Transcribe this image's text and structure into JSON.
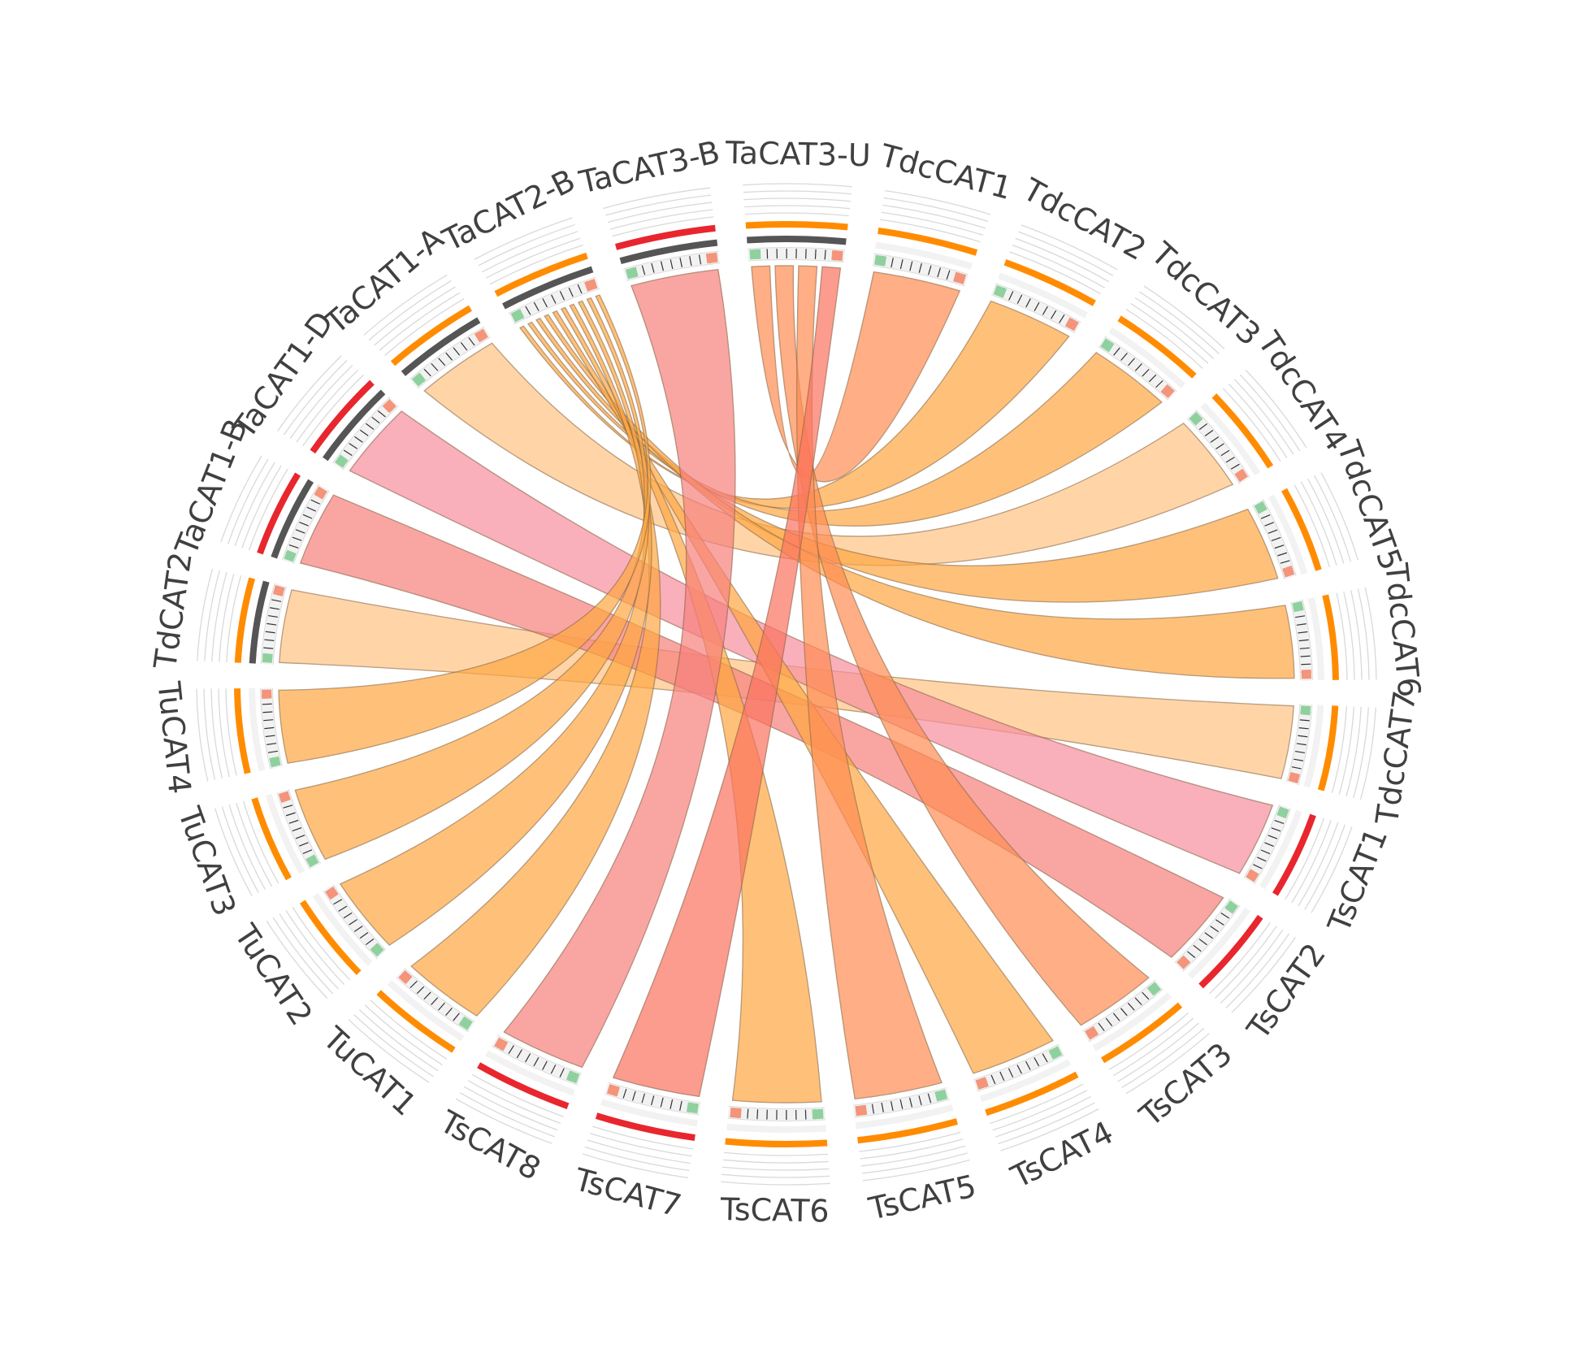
{
  "diagram": {
    "type": "chord",
    "segments": [
      {
        "id": "TdcCAT1",
        "label": "TdcCAT1",
        "role": "target",
        "ring": "orange"
      },
      {
        "id": "TdcCAT2",
        "label": "TdcCAT2",
        "role": "target",
        "ring": "orange"
      },
      {
        "id": "TdcCAT3",
        "label": "TdcCAT3",
        "role": "target",
        "ring": "orange"
      },
      {
        "id": "TdcCAT4",
        "label": "TdcCAT4",
        "role": "target",
        "ring": "orange"
      },
      {
        "id": "TdcCAT5",
        "label": "TdcCAT5",
        "role": "target",
        "ring": "orange"
      },
      {
        "id": "TdcCAT6",
        "label": "TdcCAT6",
        "role": "target",
        "ring": "orange"
      },
      {
        "id": "TdcCAT7",
        "label": "TdcCAT7",
        "role": "target",
        "ring": "orange"
      },
      {
        "id": "TsCAT1",
        "label": "TsCAT1",
        "role": "target",
        "ring": "red"
      },
      {
        "id": "TsCAT2",
        "label": "TsCAT2",
        "role": "target",
        "ring": "red"
      },
      {
        "id": "TsCAT3",
        "label": "TsCAT3",
        "role": "target",
        "ring": "orange"
      },
      {
        "id": "TsCAT4",
        "label": "TsCAT4",
        "role": "target",
        "ring": "orange"
      },
      {
        "id": "TsCAT5",
        "label": "TsCAT5",
        "role": "target",
        "ring": "orange"
      },
      {
        "id": "TsCAT6",
        "label": "TsCAT6",
        "role": "target",
        "ring": "orange"
      },
      {
        "id": "TsCAT7",
        "label": "TsCAT7",
        "role": "target",
        "ring": "red"
      },
      {
        "id": "TsCAT8",
        "label": "TsCAT8",
        "role": "target",
        "ring": "red"
      },
      {
        "id": "TuCAT1",
        "label": "TuCAT1",
        "role": "target",
        "ring": "orange"
      },
      {
        "id": "TuCAT2",
        "label": "TuCAT2",
        "role": "target",
        "ring": "orange"
      },
      {
        "id": "TuCAT3",
        "label": "TuCAT3",
        "role": "target",
        "ring": "orange"
      },
      {
        "id": "TuCAT4",
        "label": "TuCAT4",
        "role": "target",
        "ring": "orange"
      },
      {
        "id": "TdCAT2",
        "label": "TdCAT2",
        "role": "source",
        "ring": "orange"
      },
      {
        "id": "TaCAT1-B",
        "label": "TaCAT1-B",
        "role": "source",
        "ring": "red"
      },
      {
        "id": "TaCAT1-D",
        "label": "TaCAT1-D",
        "role": "source",
        "ring": "red"
      },
      {
        "id": "TaCAT1-A",
        "label": "TaCAT1-A",
        "role": "source",
        "ring": "orange"
      },
      {
        "id": "TaCAT2-B",
        "label": "TaCAT2-B",
        "role": "source",
        "ring": "orange"
      },
      {
        "id": "TaCAT3-B",
        "label": "TaCAT3-B",
        "role": "source",
        "ring": "red"
      },
      {
        "id": "TaCAT3-U",
        "label": "TaCAT3-U",
        "role": "source",
        "ring": "orange"
      }
    ],
    "links": [
      {
        "source": "TaCAT3-U",
        "target": "TdcCAT1",
        "color": "#ff5722"
      },
      {
        "source": "TaCAT2-B",
        "target": "TdcCAT2",
        "color": "#ff8c00"
      },
      {
        "source": "TaCAT2-B",
        "target": "TdcCAT3",
        "color": "#ff8c00"
      },
      {
        "source": "TaCAT1-A",
        "target": "TdcCAT4",
        "color": "#ffc485"
      },
      {
        "source": "TaCAT2-B",
        "target": "TdcCAT5",
        "color": "#ff8c00"
      },
      {
        "source": "TaCAT2-B",
        "target": "TdcCAT6",
        "color": "#ff8c00"
      },
      {
        "source": "TdCAT2",
        "target": "TdcCAT7",
        "color": "#ffc485"
      },
      {
        "source": "TaCAT1-D",
        "target": "TsCAT1",
        "color": "#f7909e"
      },
      {
        "source": "TaCAT1-B",
        "target": "TsCAT2",
        "color": "#f7725e"
      },
      {
        "source": "TaCAT3-U",
        "target": "TsCAT3",
        "color": "#ff5722"
      },
      {
        "source": "TaCAT2-B",
        "target": "TsCAT4",
        "color": "#ff8c00"
      },
      {
        "source": "TaCAT3-U",
        "target": "TsCAT5",
        "color": "#ff5722"
      },
      {
        "source": "TaCAT2-B",
        "target": "TsCAT6",
        "color": "#ff8c00"
      },
      {
        "source": "TaCAT3-U",
        "target": "TsCAT7",
        "color": "#ff5722"
      },
      {
        "source": "TaCAT3-B",
        "target": "TsCAT8",
        "color": "#f7725e"
      },
      {
        "source": "TaCAT2-B",
        "target": "TuCAT1",
        "color": "#ff8c00"
      },
      {
        "source": "TaCAT2-B",
        "target": "TuCAT2",
        "color": "#ff8c00"
      },
      {
        "source": "TaCAT2-B",
        "target": "TuCAT3",
        "color": "#ff8c00"
      },
      {
        "source": "TaCAT2-B",
        "target": "TuCAT4",
        "color": "#ff8c00"
      }
    ],
    "colors": {
      "ring_orange": "#ff8c00",
      "ring_red": "#e8262e",
      "ring_dark": "#555555",
      "ring_light": "#f2f2f2",
      "target_ribbon": "#ffc485",
      "tick_green": "#8fd19e",
      "tick_salmon": "#f4947a",
      "label": "#404040"
    }
  }
}
